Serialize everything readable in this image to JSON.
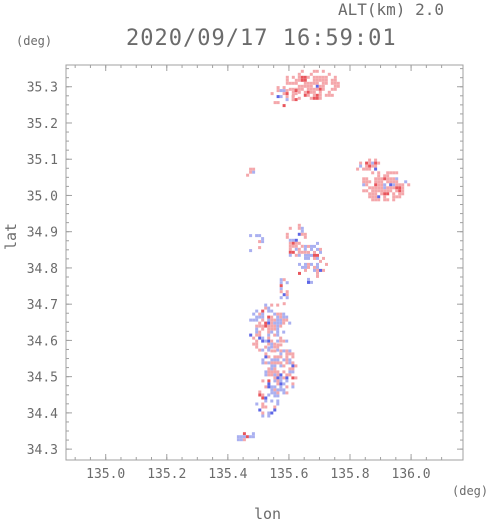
{
  "header": {
    "altitude_label": "ALT(km) 2.0",
    "timestamp": "2020/09/17 16:59:01"
  },
  "axes": {
    "y_unit": "(deg)",
    "x_unit": "(deg)",
    "x_label": "lon",
    "y_label": "lat"
  },
  "map": {
    "lon_range": [
      134.87,
      136.17
    ],
    "lat_range": [
      34.27,
      35.36
    ],
    "lon_ticks": [
      "135.0",
      "135.2",
      "135.4",
      "135.6",
      "135.8",
      "136.0"
    ],
    "lat_ticks": [
      "34.3",
      "34.4",
      "34.5",
      "34.6",
      "34.7",
      "34.8",
      "34.9",
      "35.0",
      "35.1",
      "35.2",
      "35.3"
    ],
    "colors": {
      "frame": "#a0a0a0",
      "positive": "#f4a7ab",
      "negative": "#aab0f0",
      "strong_positive": "#e8555c",
      "strong_negative": "#5d66e6"
    }
  }
}
